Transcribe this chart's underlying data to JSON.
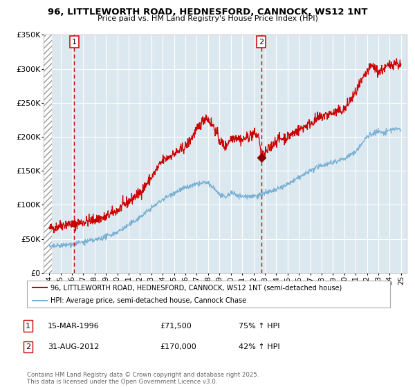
{
  "title": "96, LITTLEWORTH ROAD, HEDNESFORD, CANNOCK, WS12 1NT",
  "subtitle": "Price paid vs. HM Land Registry's House Price Index (HPI)",
  "legend_line1": "96, LITTLEWORTH ROAD, HEDNESFORD, CANNOCK, WS12 1NT (semi-detached house)",
  "legend_line2": "HPI: Average price, semi-detached house, Cannock Chase",
  "marker1_date": "15-MAR-1996",
  "marker1_price": "£71,500",
  "marker1_hpi": "75% ↑ HPI",
  "marker2_date": "31-AUG-2012",
  "marker2_price": "£170,000",
  "marker2_hpi": "42% ↑ HPI",
  "marker1_year": 1996.2,
  "marker2_year": 2012.67,
  "marker1_value": 71500,
  "marker2_value": 170000,
  "ymin": 0,
  "ymax": 350000,
  "xmin": 1993.5,
  "xmax": 2025.5,
  "plot_bg": "#dce8f0",
  "red_line": "#cc0000",
  "blue_line": "#7ab0d4",
  "dashed_line": "#cc0000",
  "footnote": "Contains HM Land Registry data © Crown copyright and database right 2025.\nThis data is licensed under the Open Government Licence v3.0.",
  "red_keypoints": [
    [
      1994.0,
      65000
    ],
    [
      1994.5,
      67000
    ],
    [
      1995.0,
      70000
    ],
    [
      1995.5,
      72000
    ],
    [
      1996.2,
      71500
    ],
    [
      1997.0,
      75000
    ],
    [
      1998.0,
      78000
    ],
    [
      1999.0,
      82000
    ],
    [
      2000.0,
      92000
    ],
    [
      2001.0,
      105000
    ],
    [
      2002.0,
      118000
    ],
    [
      2003.0,
      140000
    ],
    [
      2004.0,
      165000
    ],
    [
      2005.0,
      175000
    ],
    [
      2006.0,
      185000
    ],
    [
      2007.0,
      210000
    ],
    [
      2007.8,
      230000
    ],
    [
      2008.5,
      215000
    ],
    [
      2009.0,
      195000
    ],
    [
      2009.5,
      185000
    ],
    [
      2010.0,
      198000
    ],
    [
      2010.5,
      200000
    ],
    [
      2011.0,
      195000
    ],
    [
      2011.5,
      200000
    ],
    [
      2012.0,
      205000
    ],
    [
      2012.5,
      200000
    ],
    [
      2012.67,
      170000
    ],
    [
      2013.0,
      175000
    ],
    [
      2013.5,
      185000
    ],
    [
      2014.0,
      195000
    ],
    [
      2015.0,
      200000
    ],
    [
      2016.0,
      210000
    ],
    [
      2017.0,
      220000
    ],
    [
      2018.0,
      230000
    ],
    [
      2019.0,
      235000
    ],
    [
      2020.0,
      240000
    ],
    [
      2021.0,
      265000
    ],
    [
      2022.0,
      295000
    ],
    [
      2022.5,
      305000
    ],
    [
      2023.0,
      295000
    ],
    [
      2023.5,
      300000
    ],
    [
      2024.0,
      305000
    ],
    [
      2024.5,
      310000
    ],
    [
      2025.0,
      305000
    ]
  ],
  "blue_keypoints": [
    [
      1994.0,
      38000
    ],
    [
      1995.0,
      40000
    ],
    [
      1996.0,
      42000
    ],
    [
      1997.0,
      45000
    ],
    [
      1998.0,
      48000
    ],
    [
      1999.0,
      53000
    ],
    [
      2000.0,
      60000
    ],
    [
      2001.0,
      70000
    ],
    [
      2002.0,
      82000
    ],
    [
      2003.0,
      95000
    ],
    [
      2004.0,
      108000
    ],
    [
      2005.0,
      118000
    ],
    [
      2006.0,
      125000
    ],
    [
      2007.0,
      130000
    ],
    [
      2007.8,
      133000
    ],
    [
      2008.5,
      125000
    ],
    [
      2009.0,
      115000
    ],
    [
      2009.5,
      110000
    ],
    [
      2010.0,
      118000
    ],
    [
      2010.5,
      115000
    ],
    [
      2011.0,
      112000
    ],
    [
      2011.5,
      113000
    ],
    [
      2012.0,
      113000
    ],
    [
      2012.5,
      114000
    ],
    [
      2012.67,
      115000
    ],
    [
      2013.0,
      117000
    ],
    [
      2014.0,
      122000
    ],
    [
      2015.0,
      130000
    ],
    [
      2016.0,
      140000
    ],
    [
      2017.0,
      150000
    ],
    [
      2018.0,
      158000
    ],
    [
      2019.0,
      163000
    ],
    [
      2020.0,
      168000
    ],
    [
      2021.0,
      178000
    ],
    [
      2022.0,
      200000
    ],
    [
      2022.5,
      205000
    ],
    [
      2023.0,
      208000
    ],
    [
      2023.5,
      205000
    ],
    [
      2024.0,
      210000
    ],
    [
      2024.5,
      212000
    ],
    [
      2025.0,
      210000
    ]
  ]
}
